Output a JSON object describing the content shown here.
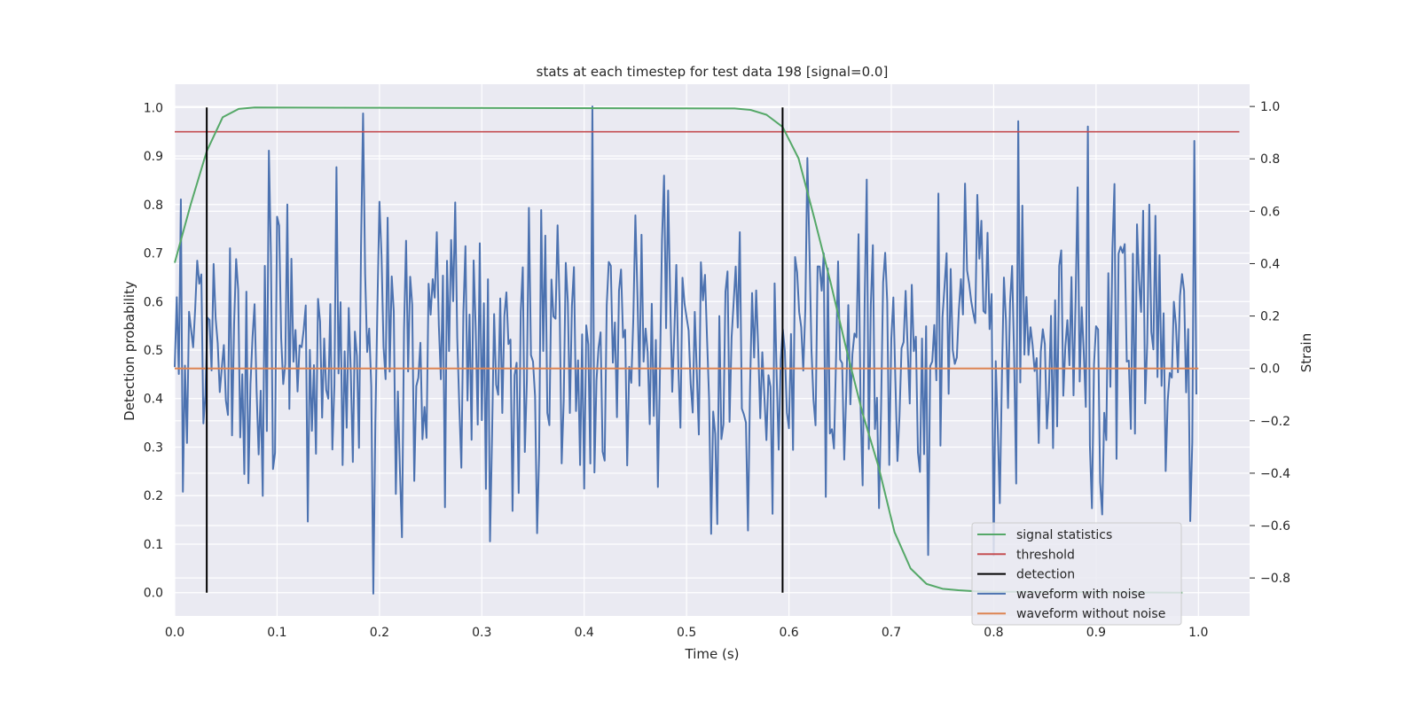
{
  "chart_data": {
    "type": "line",
    "title": "stats at each timestep for test data 198 [signal=0.0]",
    "xlabel": "Time (s)",
    "ylabel": "Detection probability",
    "y2label": "Strain",
    "xlim": [
      0.0,
      1.05
    ],
    "ylim": [
      -0.048,
      1.048
    ],
    "y2lim": [
      -0.945,
      1.085
    ],
    "xticks": [
      "0.0",
      "0.1",
      "0.2",
      "0.3",
      "0.4",
      "0.5",
      "0.6",
      "0.7",
      "0.8",
      "0.9",
      "1.0"
    ],
    "yticks": [
      "0.0",
      "0.1",
      "0.2",
      "0.3",
      "0.4",
      "0.5",
      "0.6",
      "0.7",
      "0.8",
      "0.9",
      "1.0"
    ],
    "y2ticks": [
      "−0.8",
      "−0.6",
      "−0.4",
      "−0.2",
      "0.0",
      "0.2",
      "0.4",
      "0.6",
      "0.8",
      "1.0"
    ],
    "grid": true,
    "legend_position": "lower right",
    "series": [
      {
        "name": "signal statistics",
        "color": "#55a868",
        "axis": "left",
        "x": [
          0.0,
          0.0156,
          0.0313,
          0.0469,
          0.0625,
          0.0781,
          0.5469,
          0.5625,
          0.5781,
          0.5938,
          0.6094,
          0.625,
          0.6406,
          0.6563,
          0.6719,
          0.6875,
          0.7031,
          0.7188,
          0.7344,
          0.75,
          0.7656,
          0.7813,
          0.7969,
          0.9844
        ],
        "values": [
          0.68,
          0.8,
          0.91,
          0.98,
          0.997,
          1.0,
          0.998,
          0.995,
          0.985,
          0.96,
          0.895,
          0.77,
          0.64,
          0.5,
          0.37,
          0.26,
          0.125,
          0.05,
          0.018,
          0.008,
          0.005,
          0.003,
          0.002,
          0.0
        ]
      },
      {
        "name": "threshold",
        "color": "#c44e52",
        "axis": "left",
        "x": [
          0.0,
          1.04
        ],
        "values": [
          0.95,
          0.95
        ]
      },
      {
        "name": "detection",
        "color": "#000000",
        "axis": "left",
        "segments": [
          {
            "x": 0.0313,
            "y0": 0.0,
            "y1": 1.0
          },
          {
            "x": 0.5938,
            "y0": 0.0,
            "y1": 1.0
          }
        ]
      },
      {
        "name": "waveform with noise",
        "color": "#4c72b0",
        "axis": "right",
        "x_start": 0.0,
        "x_step": 0.002,
        "points": 500,
        "y_min": -0.86,
        "y_max": 1.0
      },
      {
        "name": "waveform without noise",
        "color": "#dd8452",
        "axis": "right",
        "x": [
          0.0,
          1.0
        ],
        "values": [
          0.0,
          0.0
        ]
      }
    ]
  }
}
